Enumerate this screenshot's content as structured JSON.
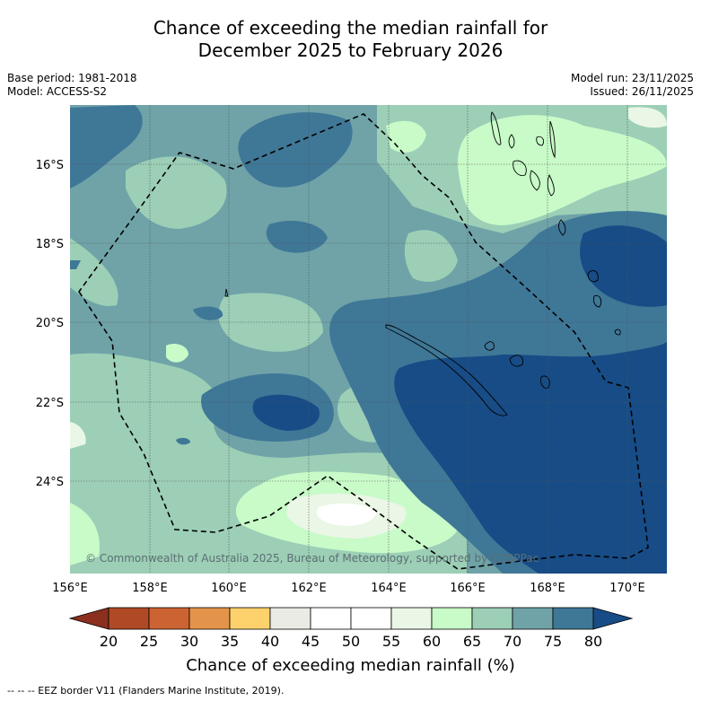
{
  "title_line1": "Chance of exceeding the median rainfall for",
  "title_line2": "December 2025 to February 2026",
  "base_period": "Base period: 1981-2018",
  "model": "Model: ACCESS-S2",
  "model_run": "Model run: 23/11/2025",
  "issued": "Issued: 26/11/2025",
  "copyright": "© Commonwealth of Australia 2025, Bureau of Meteorology, supported by COSPPac",
  "lon_labels": [
    "156°E",
    "158°E",
    "160°E",
    "162°E",
    "164°E",
    "166°E",
    "168°E",
    "170°E"
  ],
  "lat_labels": [
    "16°S",
    "18°S",
    "20°S",
    "22°S",
    "24°S"
  ],
  "colorbar": {
    "ticks": [
      "20",
      "25",
      "30",
      "35",
      "40",
      "45",
      "50",
      "55",
      "60",
      "65",
      "70",
      "75",
      "80"
    ],
    "colors": [
      "#8b2f1e",
      "#b04a26",
      "#cc6333",
      "#e3944a",
      "#fdd16c",
      "#ebebe5",
      "#ffffff",
      "#ffffff",
      "#eaf6e6",
      "#c8fbc8",
      "#9ccfb6",
      "#6fa3a8",
      "#3f7797",
      "#174c86"
    ],
    "title": "Chance of exceeding median rainfall (%)"
  },
  "colors": {
    "c55_60": "#eaf6e6",
    "c60_65": "#c8fbc8",
    "c65_70": "#9ccfb6",
    "c70_75": "#6fa3a8",
    "c75_80": "#3f7797",
    "c80": "#174c86"
  },
  "footer": "--  --  -- EEZ border V11 (Flanders Marine Institute, 2019)."
}
